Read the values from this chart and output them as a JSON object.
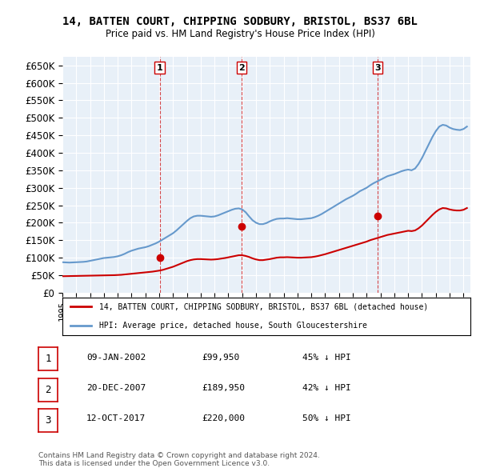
{
  "title": "14, BATTEN COURT, CHIPPING SODBURY, BRISTOL, BS37 6BL",
  "subtitle": "Price paid vs. HM Land Registry's House Price Index (HPI)",
  "ylabel": "",
  "ylim": [
    0,
    675000
  ],
  "yticks": [
    0,
    50000,
    100000,
    150000,
    200000,
    250000,
    300000,
    350000,
    400000,
    450000,
    500000,
    550000,
    600000,
    650000
  ],
  "background_color": "#ffffff",
  "plot_bg_color": "#e8f0f8",
  "grid_color": "#ffffff",
  "transactions": [
    {
      "date": 2002.03,
      "price": 99950,
      "label": "1"
    },
    {
      "date": 2007.97,
      "price": 189950,
      "label": "2"
    },
    {
      "date": 2017.79,
      "price": 220000,
      "label": "3"
    }
  ],
  "vline_dates": [
    2002.03,
    2007.97,
    2017.79
  ],
  "vline_color": "#cc0000",
  "hpi_color": "#6699cc",
  "price_color": "#cc0000",
  "legend_entries": [
    "14, BATTEN COURT, CHIPPING SODBURY, BRISTOL, BS37 6BL (detached house)",
    "HPI: Average price, detached house, South Gloucestershire"
  ],
  "table_rows": [
    {
      "num": "1",
      "date": "09-JAN-2002",
      "price": "£99,950",
      "hpi": "45% ↓ HPI"
    },
    {
      "num": "2",
      "date": "20-DEC-2007",
      "price": "£189,950",
      "hpi": "42% ↓ HPI"
    },
    {
      "num": "3",
      "date": "12-OCT-2017",
      "price": "£220,000",
      "hpi": "50% ↓ HPI"
    }
  ],
  "footer": "Contains HM Land Registry data © Crown copyright and database right 2024.\nThis data is licensed under the Open Government Licence v3.0.",
  "hpi_data": {
    "years": [
      1995.0,
      1995.25,
      1995.5,
      1995.75,
      1996.0,
      1996.25,
      1996.5,
      1996.75,
      1997.0,
      1997.25,
      1997.5,
      1997.75,
      1998.0,
      1998.25,
      1998.5,
      1998.75,
      1999.0,
      1999.25,
      1999.5,
      1999.75,
      2000.0,
      2000.25,
      2000.5,
      2000.75,
      2001.0,
      2001.25,
      2001.5,
      2001.75,
      2002.0,
      2002.25,
      2002.5,
      2002.75,
      2003.0,
      2003.25,
      2003.5,
      2003.75,
      2004.0,
      2004.25,
      2004.5,
      2004.75,
      2005.0,
      2005.25,
      2005.5,
      2005.75,
      2006.0,
      2006.25,
      2006.5,
      2006.75,
      2007.0,
      2007.25,
      2007.5,
      2007.75,
      2008.0,
      2008.25,
      2008.5,
      2008.75,
      2009.0,
      2009.25,
      2009.5,
      2009.75,
      2010.0,
      2010.25,
      2010.5,
      2010.75,
      2011.0,
      2011.25,
      2011.5,
      2011.75,
      2012.0,
      2012.25,
      2012.5,
      2012.75,
      2013.0,
      2013.25,
      2013.5,
      2013.75,
      2014.0,
      2014.25,
      2014.5,
      2014.75,
      2015.0,
      2015.25,
      2015.5,
      2015.75,
      2016.0,
      2016.25,
      2016.5,
      2016.75,
      2017.0,
      2017.25,
      2017.5,
      2017.75,
      2018.0,
      2018.25,
      2018.5,
      2018.75,
      2019.0,
      2019.25,
      2019.5,
      2019.75,
      2020.0,
      2020.25,
      2020.5,
      2020.75,
      2021.0,
      2021.25,
      2021.5,
      2021.75,
      2022.0,
      2022.25,
      2022.5,
      2022.75,
      2023.0,
      2023.25,
      2023.5,
      2023.75,
      2024.0,
      2024.25
    ],
    "values": [
      87000,
      86500,
      86000,
      86500,
      87000,
      87500,
      88000,
      89000,
      91000,
      93000,
      95000,
      97000,
      99000,
      100000,
      101000,
      102000,
      104000,
      107000,
      111000,
      116000,
      120000,
      123000,
      126000,
      128000,
      130000,
      133000,
      137000,
      141000,
      146000,
      152000,
      158000,
      164000,
      170000,
      178000,
      187000,
      196000,
      205000,
      213000,
      218000,
      220000,
      220000,
      219000,
      218000,
      217000,
      218000,
      221000,
      225000,
      229000,
      233000,
      237000,
      240000,
      241000,
      238000,
      230000,
      218000,
      207000,
      200000,
      196000,
      196000,
      199000,
      204000,
      208000,
      211000,
      212000,
      212000,
      213000,
      212000,
      211000,
      210000,
      210000,
      211000,
      212000,
      213000,
      216000,
      220000,
      225000,
      231000,
      237000,
      243000,
      249000,
      255000,
      261000,
      267000,
      272000,
      277000,
      283000,
      290000,
      295000,
      300000,
      307000,
      313000,
      318000,
      323000,
      328000,
      333000,
      336000,
      339000,
      343000,
      347000,
      350000,
      352000,
      350000,
      355000,
      368000,
      385000,
      405000,
      425000,
      445000,
      462000,
      475000,
      480000,
      478000,
      472000,
      468000,
      466000,
      465000,
      468000,
      475000
    ]
  },
  "price_history": {
    "years": [
      1995.0,
      1995.25,
      1995.5,
      1995.75,
      1996.0,
      1996.25,
      1996.5,
      1996.75,
      1997.0,
      1997.25,
      1997.5,
      1997.75,
      1998.0,
      1998.25,
      1998.5,
      1998.75,
      1999.0,
      1999.25,
      1999.5,
      1999.75,
      2000.0,
      2000.25,
      2000.5,
      2000.75,
      2001.0,
      2001.25,
      2001.5,
      2001.75,
      2002.0,
      2002.25,
      2002.5,
      2002.75,
      2003.0,
      2003.25,
      2003.5,
      2003.75,
      2004.0,
      2004.25,
      2004.5,
      2004.75,
      2005.0,
      2005.25,
      2005.5,
      2005.75,
      2006.0,
      2006.25,
      2006.5,
      2006.75,
      2007.0,
      2007.25,
      2007.5,
      2007.75,
      2008.0,
      2008.25,
      2008.5,
      2008.75,
      2009.0,
      2009.25,
      2009.5,
      2009.75,
      2010.0,
      2010.25,
      2010.5,
      2010.75,
      2011.0,
      2011.25,
      2011.5,
      2011.75,
      2012.0,
      2012.25,
      2012.5,
      2012.75,
      2013.0,
      2013.25,
      2013.5,
      2013.75,
      2014.0,
      2014.25,
      2014.5,
      2014.75,
      2015.0,
      2015.25,
      2015.5,
      2015.75,
      2016.0,
      2016.25,
      2016.5,
      2016.75,
      2017.0,
      2017.25,
      2017.5,
      2017.75,
      2018.0,
      2018.25,
      2018.5,
      2018.75,
      2019.0,
      2019.25,
      2019.5,
      2019.75,
      2020.0,
      2020.25,
      2020.5,
      2020.75,
      2021.0,
      2021.25,
      2021.5,
      2021.75,
      2022.0,
      2022.25,
      2022.5,
      2022.75,
      2023.0,
      2023.25,
      2023.5,
      2023.75,
      2024.0,
      2024.25
    ],
    "values": [
      47000,
      47200,
      47400,
      47600,
      47800,
      48000,
      48200,
      48400,
      48600,
      48800,
      49000,
      49200,
      49400,
      49600,
      49800,
      50000,
      50500,
      51000,
      52000,
      53000,
      54000,
      55000,
      56000,
      57000,
      58000,
      59000,
      60000,
      61500,
      63000,
      65000,
      68000,
      71000,
      74000,
      78000,
      82000,
      86000,
      90000,
      93000,
      95000,
      96000,
      96000,
      95500,
      95000,
      94500,
      95000,
      96000,
      97500,
      99000,
      101000,
      103000,
      105000,
      107000,
      107000,
      105000,
      102000,
      98000,
      95000,
      93000,
      93000,
      94500,
      96000,
      98000,
      100000,
      101000,
      101000,
      101500,
      101000,
      100500,
      100000,
      100000,
      100500,
      101000,
      101500,
      103000,
      105000,
      107500,
      110000,
      113000,
      116000,
      119000,
      122000,
      125000,
      128000,
      131000,
      134000,
      137000,
      140000,
      143000,
      146000,
      150000,
      153000,
      156000,
      159000,
      162000,
      165000,
      167000,
      169000,
      171000,
      173000,
      175000,
      177000,
      176000,
      178000,
      184000,
      192000,
      202000,
      212000,
      222000,
      231000,
      238000,
      242000,
      241000,
      238000,
      236000,
      235000,
      235000,
      237000,
      242000
    ]
  }
}
